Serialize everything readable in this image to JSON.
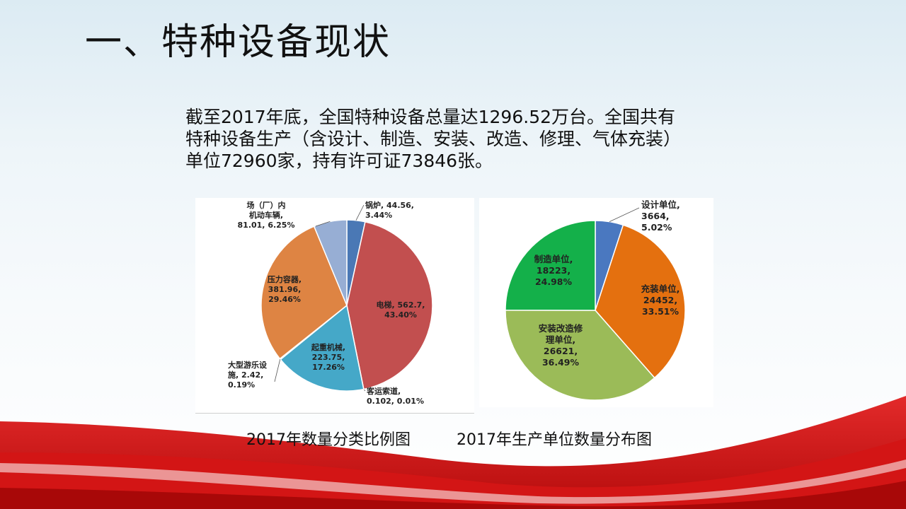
{
  "slide": {
    "title": "一、特种设备现状",
    "intro_lines": [
      "截至2017年底，全国特种设备总量达1296.52万台。全国共有",
      "特种设备生产（含设计、制造、安装、改造、修理、气体充装）",
      "单位72960家，持有许可证73846张。"
    ],
    "caption_left": "2017年数量分类比例图",
    "caption_right": "2017年生产单位数量分布图"
  },
  "chart_data": [
    {
      "type": "pie",
      "slices": [
        {
          "label_lines": [
            "锅炉, 44.56,",
            "3.44%"
          ],
          "value": 44.56,
          "percent": 3.44,
          "color": "#4a78b5"
        },
        {
          "label_lines": [
            "电梯, 562.7,",
            "43.40%"
          ],
          "value": 562.7,
          "percent": 43.4,
          "color": "#c24f4f"
        },
        {
          "label_lines": [
            "客运索道,",
            "0.102, 0.01%"
          ],
          "value": 0.102,
          "percent": 0.01,
          "color": "#8fbd55"
        },
        {
          "label_lines": [
            "起重机械,",
            "223.75,",
            "17.26%"
          ],
          "value": 223.75,
          "percent": 17.26,
          "color": "#45a8c8"
        },
        {
          "label_lines": [
            "大型游乐设",
            "施, 2.42,",
            "0.19%"
          ],
          "value": 2.42,
          "percent": 0.19,
          "color": "#7b5ea7"
        },
        {
          "label_lines": [
            "压力容器,",
            "381.96,",
            "29.46%"
          ],
          "value": 381.96,
          "percent": 29.46,
          "color": "#de8443"
        },
        {
          "label_lines": [
            "场（厂）内",
            "机动车辆,",
            "81.01, 6.25%"
          ],
          "value": 81.01,
          "percent": 6.25,
          "color": "#97aed4"
        }
      ]
    },
    {
      "type": "pie",
      "slices": [
        {
          "label_lines": [
            "设计单位,",
            "3664,",
            "5.02%"
          ],
          "value": 3664,
          "percent": 5.02,
          "color": "#4a78c0"
        },
        {
          "label_lines": [
            "充装单位,",
            "24452,",
            "33.51%"
          ],
          "value": 24452,
          "percent": 33.51,
          "color": "#e4700f"
        },
        {
          "label_lines": [
            "安装改造修",
            "理单位,",
            "26621,",
            "36.49%"
          ],
          "value": 26621,
          "percent": 36.49,
          "color": "#9bbb58"
        },
        {
          "label_lines": [
            "制造单位,",
            "18223,",
            "24.98%"
          ],
          "value": 18223,
          "percent": 24.98,
          "color": "#14b04a"
        }
      ]
    }
  ]
}
